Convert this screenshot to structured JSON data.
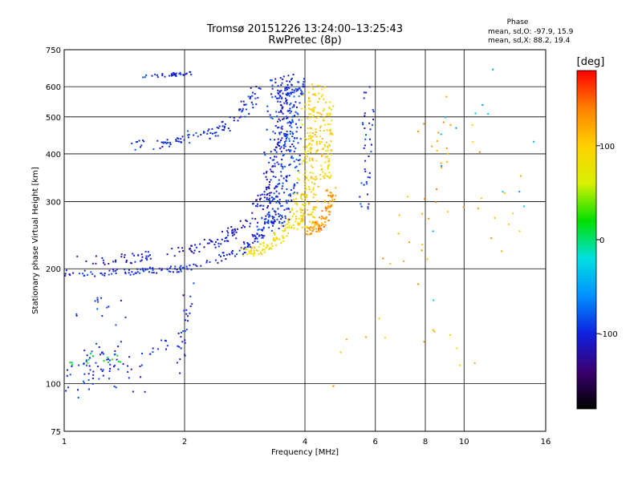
{
  "chart_data": {
    "type": "scatter",
    "title": "Tromsø 20151226 13:24:00–13:25:43",
    "subtitle": "RwPretec (8p)",
    "xlabel": "Frequency [MHz]",
    "ylabel": "Stationary phase Virtual Height [km]",
    "x_scale": "log2",
    "y_scale": "log",
    "xlim": [
      1,
      16
    ],
    "ylim": [
      75,
      750
    ],
    "x_ticks": [
      1,
      2,
      4,
      6,
      8,
      10,
      16
    ],
    "x_grid": [
      2,
      4,
      6,
      8,
      10
    ],
    "y_ticks": [
      75,
      100,
      200,
      300,
      400,
      500,
      600,
      750
    ],
    "y_grid": [
      100,
      200,
      300,
      400,
      500,
      600
    ],
    "grid": true,
    "phase_stats": {
      "heading": "Phase",
      "o_mode": "mean, sd,O: -97.9, 15.9",
      "x_mode": "mean, sd,X:  88.2, 19.4"
    },
    "colorbar": {
      "label": "[deg]",
      "ticks": [
        100,
        0,
        -100
      ],
      "range": [
        -180,
        180
      ],
      "colors": [
        "#000000",
        "#3a0070",
        "#1020e0",
        "#0090ff",
        "#00e0e0",
        "#00e000",
        "#d8f000",
        "#ffd000",
        "#ff8000",
        "#ff0000"
      ]
    },
    "point_groups": [
      {
        "name": "o-trace low",
        "phase": -100,
        "n": 240,
        "path": [
          [
            1.0,
            195
          ],
          [
            1.3,
            195
          ],
          [
            1.6,
            197
          ],
          [
            2.0,
            200
          ],
          [
            2.4,
            210
          ],
          [
            2.8,
            225
          ],
          [
            3.1,
            245
          ],
          [
            3.3,
            275
          ],
          [
            3.45,
            330
          ],
          [
            3.55,
            450
          ],
          [
            3.6,
            640
          ]
        ],
        "dx": 0.03,
        "dy": 0.02
      },
      {
        "name": "o-trace upper",
        "phase": -110,
        "n": 200,
        "path": [
          [
            1.05,
            210
          ],
          [
            1.4,
            212
          ],
          [
            1.8,
            218
          ],
          [
            2.2,
            228
          ],
          [
            2.6,
            245
          ],
          [
            2.95,
            270
          ],
          [
            3.2,
            310
          ],
          [
            3.4,
            380
          ],
          [
            3.5,
            520
          ],
          [
            3.55,
            640
          ]
        ],
        "dx": 0.04,
        "dy": 0.03
      },
      {
        "name": "o-trace band",
        "phase": -95,
        "n": 180,
        "path": [
          [
            3.3,
            250
          ],
          [
            3.4,
            300
          ],
          [
            3.45,
            400
          ],
          [
            3.5,
            500
          ],
          [
            3.55,
            640
          ]
        ],
        "dx": 0.09,
        "dy": 0.02
      },
      {
        "name": "blue column 2",
        "phase": -90,
        "n": 80,
        "path": [
          [
            3.7,
            300
          ],
          [
            3.75,
            400
          ],
          [
            3.8,
            520
          ],
          [
            3.85,
            640
          ]
        ],
        "dx": 0.04,
        "dy": 0.03
      },
      {
        "name": "x-trace",
        "phase": 88,
        "n": 170,
        "path": [
          [
            2.85,
            220
          ],
          [
            3.1,
            225
          ],
          [
            3.4,
            240
          ],
          [
            3.7,
            262
          ],
          [
            3.9,
            300
          ],
          [
            4.0,
            360
          ],
          [
            4.05,
            450
          ],
          [
            4.1,
            560
          ]
        ],
        "dx": 0.04,
        "dy": 0.025
      },
      {
        "name": "x-trace column",
        "phase": 100,
        "n": 160,
        "path": [
          [
            4.0,
            250
          ],
          [
            4.1,
            300
          ],
          [
            4.2,
            380
          ],
          [
            4.25,
            480
          ],
          [
            4.3,
            620
          ]
        ],
        "dx": 0.05,
        "dy": 0.03
      },
      {
        "name": "x-trace orange",
        "phase": 130,
        "n": 90,
        "path": [
          [
            4.1,
            250
          ],
          [
            4.35,
            260
          ],
          [
            4.55,
            280
          ],
          [
            4.65,
            320
          ]
        ],
        "dx": 0.03,
        "dy": 0.03
      },
      {
        "name": "x-trace right",
        "phase": 90,
        "n": 70,
        "path": [
          [
            4.5,
            340
          ],
          [
            4.55,
            420
          ],
          [
            4.6,
            560
          ]
        ],
        "dx": 0.03,
        "dy": 0.03
      },
      {
        "name": "second hop",
        "phase": -100,
        "n": 110,
        "path": [
          [
            1.5,
            420
          ],
          [
            1.8,
            425
          ],
          [
            2.0,
            440
          ],
          [
            2.3,
            455
          ],
          [
            2.6,
            480
          ],
          [
            2.9,
            540
          ],
          [
            3.05,
            600
          ]
        ],
        "dx": 0.04,
        "dy": 0.03
      },
      {
        "name": "top line",
        "phase": -100,
        "n": 35,
        "path": [
          [
            1.6,
            640
          ],
          [
            1.85,
            645
          ],
          [
            2.1,
            650
          ]
        ],
        "dx": 0.02,
        "dy": 0.01
      },
      {
        "name": "low spread",
        "phase": -100,
        "n": 80,
        "path": [
          [
            1.0,
            95
          ],
          [
            1.15,
            110
          ],
          [
            1.3,
            120
          ],
          [
            1.5,
            100
          ]
        ],
        "dx": 0.12,
        "dy": 0.08
      },
      {
        "name": "low spread green",
        "phase": 20,
        "n": 14,
        "path": [
          [
            1.05,
            115
          ],
          [
            1.25,
            118
          ],
          [
            1.4,
            115
          ]
        ],
        "dx": 0.05,
        "dy": 0.04
      },
      {
        "name": "low mid",
        "phase": -100,
        "n": 30,
        "path": [
          [
            1.1,
            155
          ],
          [
            1.3,
            160
          ],
          [
            1.6,
            120
          ],
          [
            1.9,
            130
          ]
        ],
        "dx": 0.08,
        "dy": 0.06
      },
      {
        "name": "near 2 MHz",
        "phase": -100,
        "n": 25,
        "path": [
          [
            1.95,
            110
          ],
          [
            2.0,
            140
          ],
          [
            2.05,
            170
          ]
        ],
        "dx": 0.03,
        "dy": 0.1
      },
      {
        "name": "right scatter blue",
        "phase": -95,
        "n": 40,
        "path": [
          [
            5.6,
            300
          ],
          [
            5.7,
            380
          ],
          [
            5.75,
            470
          ],
          [
            5.8,
            560
          ]
        ],
        "dx": 0.03,
        "dy": 0.08
      },
      {
        "name": "right scatter warm",
        "phase": 120,
        "n": 45,
        "path": [
          [
            6.4,
            180
          ],
          [
            7.5,
            300
          ],
          [
            9.0,
            450
          ],
          [
            11.5,
            350
          ],
          [
            14.0,
            250
          ]
        ],
        "dx": 0.12,
        "dy": 0.3
      },
      {
        "name": "right scatter cool",
        "phase": -40,
        "n": 14,
        "path": [
          [
            8.2,
            180
          ],
          [
            9.5,
            500
          ],
          [
            12.0,
            600
          ],
          [
            15.5,
            220
          ]
        ],
        "dx": 0.1,
        "dy": 0.25
      },
      {
        "name": "low right",
        "phase": 110,
        "n": 14,
        "path": [
          [
            4.5,
            95
          ],
          [
            4.7,
            125
          ],
          [
            6.3,
            140
          ],
          [
            9.5,
            130
          ],
          [
            10.5,
            105
          ]
        ],
        "dx": 0.05,
        "dy": 0.08
      }
    ]
  }
}
